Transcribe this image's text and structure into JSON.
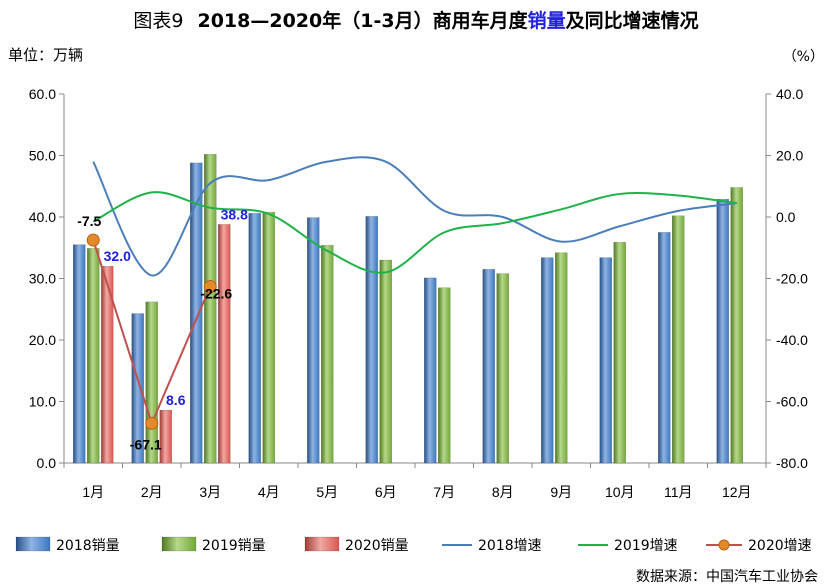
{
  "title": {
    "prefix": "图表9",
    "main_a": "2018—2020年（1-3月）商用车月度",
    "highlight": "销量",
    "main_b": "及同比增速情况"
  },
  "unit_left": "单位：万辆",
  "unit_right": "（%）",
  "source": "数据来源：中国汽车工业协会",
  "colors": {
    "bar2018": "#3d78c1",
    "bar2019": "#74a83a",
    "bar2020": "#d9564f",
    "line2018": "#4a7ebb",
    "line2019": "#1fb24a",
    "line2020": "#c0504d",
    "marker2020": "#e58a2a",
    "label_blue": "#1e1ee0"
  },
  "chart_data": {
    "type": "bar",
    "categories": [
      "1月",
      "2月",
      "3月",
      "4月",
      "5月",
      "6月",
      "7月",
      "8月",
      "9月",
      "10月",
      "11月",
      "12月"
    ],
    "series": [
      {
        "name": "2018销量",
        "kind": "bar",
        "axis": "left",
        "values": [
          35.5,
          24.3,
          48.8,
          40.6,
          39.9,
          40.1,
          30.1,
          31.5,
          33.4,
          33.4,
          37.5,
          42.9
        ]
      },
      {
        "name": "2019销量",
        "kind": "bar",
        "axis": "left",
        "values": [
          34.9,
          26.2,
          50.2,
          40.8,
          35.4,
          33.0,
          28.5,
          30.8,
          34.2,
          35.9,
          40.2,
          44.8
        ]
      },
      {
        "name": "2020销量",
        "kind": "bar",
        "axis": "left",
        "values": [
          32.0,
          8.6,
          38.8,
          null,
          null,
          null,
          null,
          null,
          null,
          null,
          null,
          null
        ]
      },
      {
        "name": "2018增速",
        "kind": "line",
        "axis": "right",
        "values": [
          18.0,
          -19.0,
          11.0,
          12.0,
          18.0,
          18.0,
          2.0,
          0.0,
          -8.0,
          -3.0,
          2.0,
          4.5
        ]
      },
      {
        "name": "2019增速",
        "kind": "line",
        "axis": "right",
        "values": [
          -1.5,
          8.0,
          3.0,
          1.0,
          -11.0,
          -18.0,
          -5.0,
          -2.0,
          2.5,
          7.5,
          7.0,
          4.5
        ]
      },
      {
        "name": "2020增速",
        "kind": "line",
        "axis": "right",
        "values": [
          -7.5,
          -67.1,
          -22.6,
          null,
          null,
          null,
          null,
          null,
          null,
          null,
          null,
          null
        ]
      }
    ],
    "bar_labels_2020": [
      "32.0",
      "8.6",
      "38.8"
    ],
    "line_labels_2020": [
      "-7.5",
      "-67.1",
      "-22.6"
    ],
    "y_left": {
      "min": 0,
      "max": 60,
      "ticks": [
        "0.0",
        "10.0",
        "20.0",
        "30.0",
        "40.0",
        "50.0",
        "60.0"
      ]
    },
    "y_right": {
      "min": -80,
      "max": 40,
      "ticks": [
        "-80.0",
        "-60.0",
        "-40.0",
        "-20.0",
        "0.0",
        "20.0",
        "40.0"
      ]
    },
    "legend_position": "bottom",
    "grid": false
  }
}
